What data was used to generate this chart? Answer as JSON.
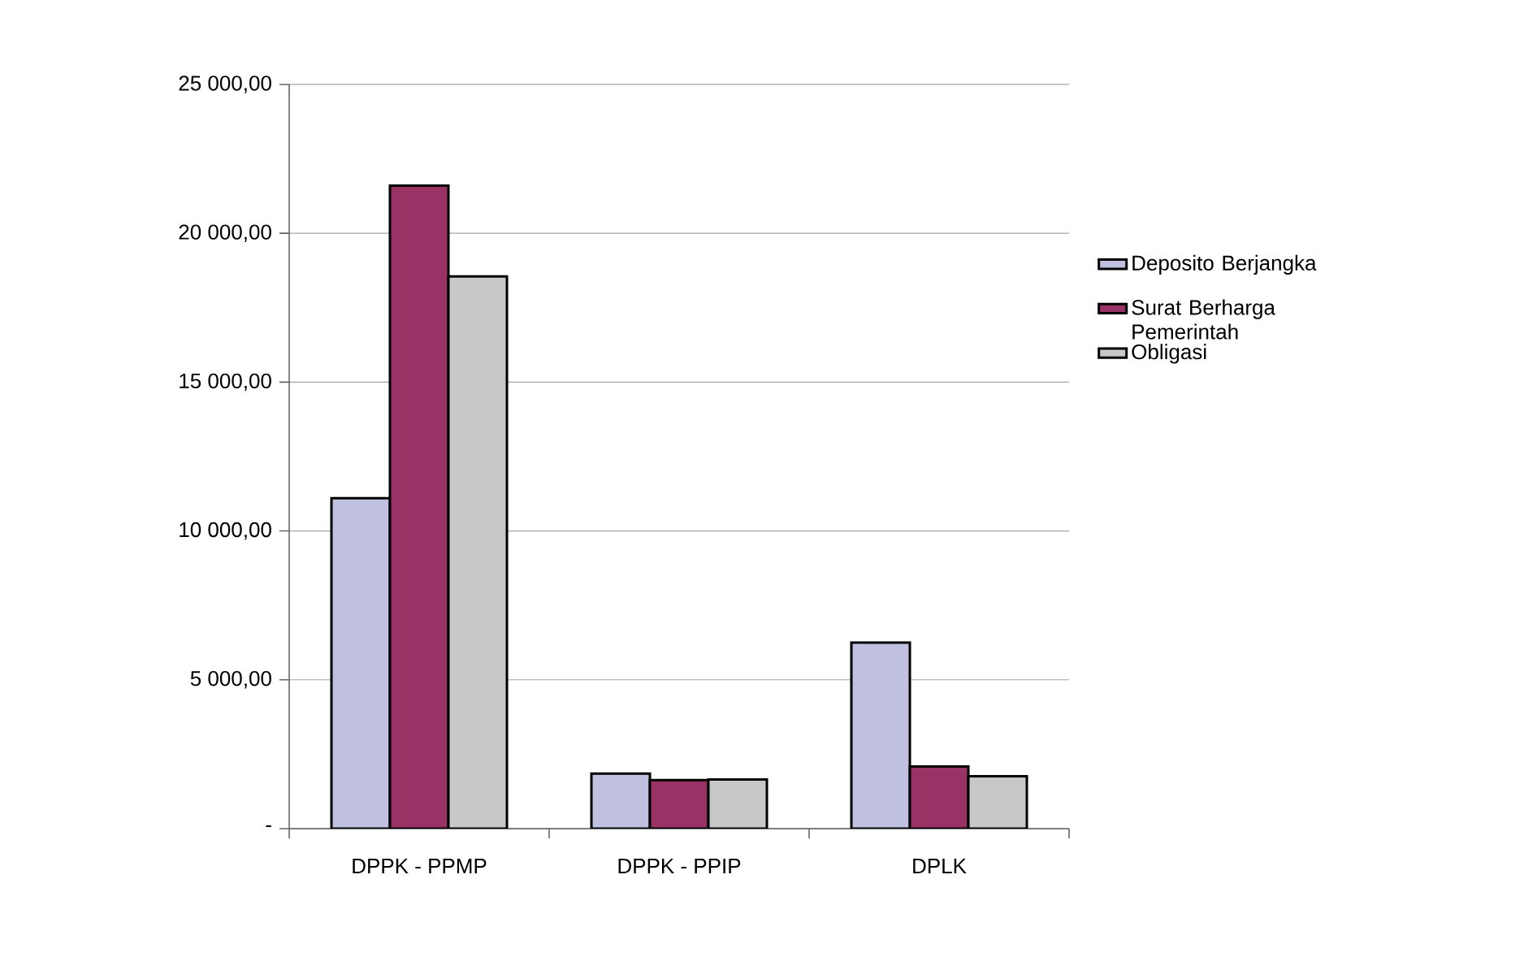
{
  "chart_data": {
    "type": "bar",
    "categories": [
      "DPPK - PPMP",
      "DPPK - PPIP",
      "DPLK"
    ],
    "series": [
      {
        "name": "Deposito Berjangka",
        "color": "#c0c0e0",
        "values": [
          11100,
          1850,
          6250
        ]
      },
      {
        "name": "Surat Berharga Pemerintah",
        "color": "#993366",
        "values": [
          21600,
          1630,
          2090
        ]
      },
      {
        "name": "Obligasi",
        "color": "#c8c8c8",
        "values": [
          18550,
          1650,
          1760
        ]
      }
    ],
    "ylim": [
      0,
      25000
    ],
    "yticks": [
      {
        "value": 0,
        "label": "-"
      },
      {
        "value": 5000,
        "label": "5 000,00"
      },
      {
        "value": 10000,
        "label": "10 000,00"
      },
      {
        "value": 15000,
        "label": "15 000,00"
      },
      {
        "value": 20000,
        "label": "20 000,00"
      },
      {
        "value": 25000,
        "label": "25 000,00"
      }
    ],
    "grid": "y",
    "legend": "right"
  }
}
